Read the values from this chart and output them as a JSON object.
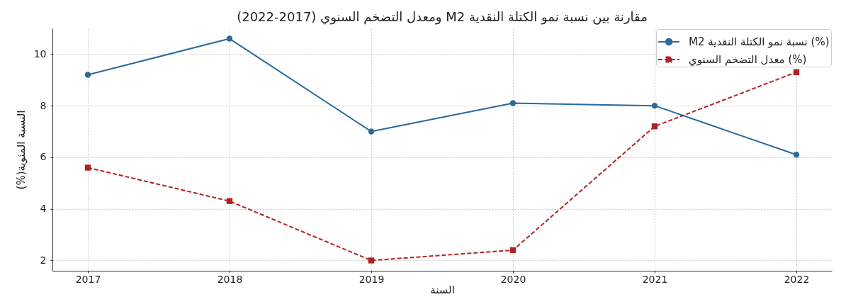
{
  "chart_data": {
    "type": "line",
    "title": "مقارنة بين نسبة نمو الكتلة النقدية M2 ومعدل التضخم السنوي (2017-2022)",
    "xlabel": "السنة",
    "ylabel": "النسبة المئوية(%)",
    "x": [
      2017,
      2018,
      2019,
      2020,
      2021,
      2022
    ],
    "xlim": [
      2016.75,
      2022.25
    ],
    "xticks": [
      2017,
      2018,
      2019,
      2020,
      2021,
      2022
    ],
    "ylim": [
      1.6,
      11.0
    ],
    "yticks": [
      2,
      4,
      6,
      8,
      10
    ],
    "grid": true,
    "legend": "top right",
    "series": [
      {
        "name": "(%) نسبة نمو الكتلة النقدية M2",
        "color": "#2a6b9c",
        "values": [
          9.2,
          10.6,
          7.0,
          8.1,
          8.0,
          6.1
        ],
        "marker": "circle",
        "line_style": "solid"
      },
      {
        "name": "(%) معدل التضخم السنوي",
        "color": "#b22222",
        "values": [
          5.6,
          4.3,
          2.0,
          2.4,
          7.2,
          9.3
        ],
        "marker": "square",
        "line_style": "dashed"
      }
    ]
  }
}
